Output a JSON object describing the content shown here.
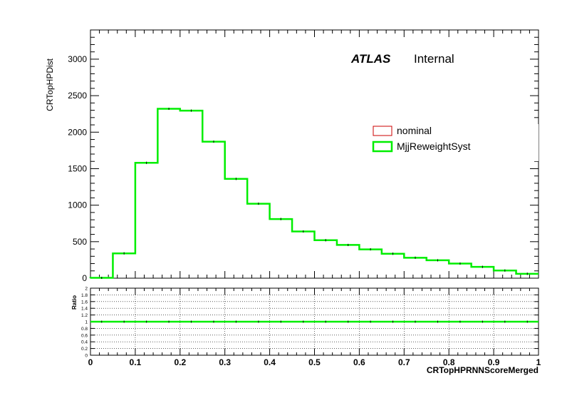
{
  "chart_data": [
    {
      "type": "step",
      "panel": "main",
      "ylabel": "CRTopHPDist",
      "xlim": [
        0,
        1
      ],
      "ylim": [
        0,
        3400
      ],
      "x_edges": [
        0,
        0.05,
        0.1,
        0.15,
        0.2,
        0.25,
        0.3,
        0.35,
        0.4,
        0.45,
        0.5,
        0.55,
        0.6,
        0.65,
        0.7,
        0.75,
        0.8,
        0.85,
        0.9,
        0.95,
        1.0
      ],
      "y_ticks": [
        0,
        500,
        1000,
        1500,
        2000,
        2500,
        3000
      ],
      "series": [
        {
          "name": "nominal",
          "color": "#cc0000",
          "values": [
            5,
            340,
            1580,
            2320,
            2295,
            1870,
            1360,
            1020,
            810,
            640,
            520,
            455,
            395,
            335,
            280,
            245,
            200,
            155,
            105,
            60
          ]
        },
        {
          "name": "MjjReweightSyst",
          "color": "#00ee00",
          "values": [
            5,
            340,
            1580,
            2320,
            2295,
            1870,
            1360,
            1020,
            810,
            640,
            520,
            455,
            395,
            335,
            280,
            245,
            200,
            155,
            105,
            60
          ]
        }
      ],
      "legend": {
        "position": "middle-right",
        "entries": [
          "nominal",
          "MjjReweightSyst"
        ]
      },
      "annotations": {
        "atlas": "ATLAS",
        "status": "Internal"
      }
    },
    {
      "type": "line",
      "panel": "ratio",
      "ylabel": "Ratio",
      "xlabel": "CRTopHPRNNScoreMerged",
      "xlim": [
        0,
        1
      ],
      "ylim": [
        0,
        2
      ],
      "x_ticks": [
        "0",
        "0.1",
        "0.2",
        "0.3",
        "0.4",
        "0.5",
        "0.6",
        "0.7",
        "0.8",
        "0.9",
        "1"
      ],
      "y_ticks": [
        "0",
        "0.2",
        "0.4",
        "0.6",
        "0.8",
        "1",
        "1.2",
        "1.4",
        "1.6",
        "1.8",
        "2"
      ],
      "grid": true,
      "series": [
        {
          "name": "MjjReweightSyst",
          "color": "#00ee00",
          "value": 1.0
        }
      ]
    }
  ]
}
